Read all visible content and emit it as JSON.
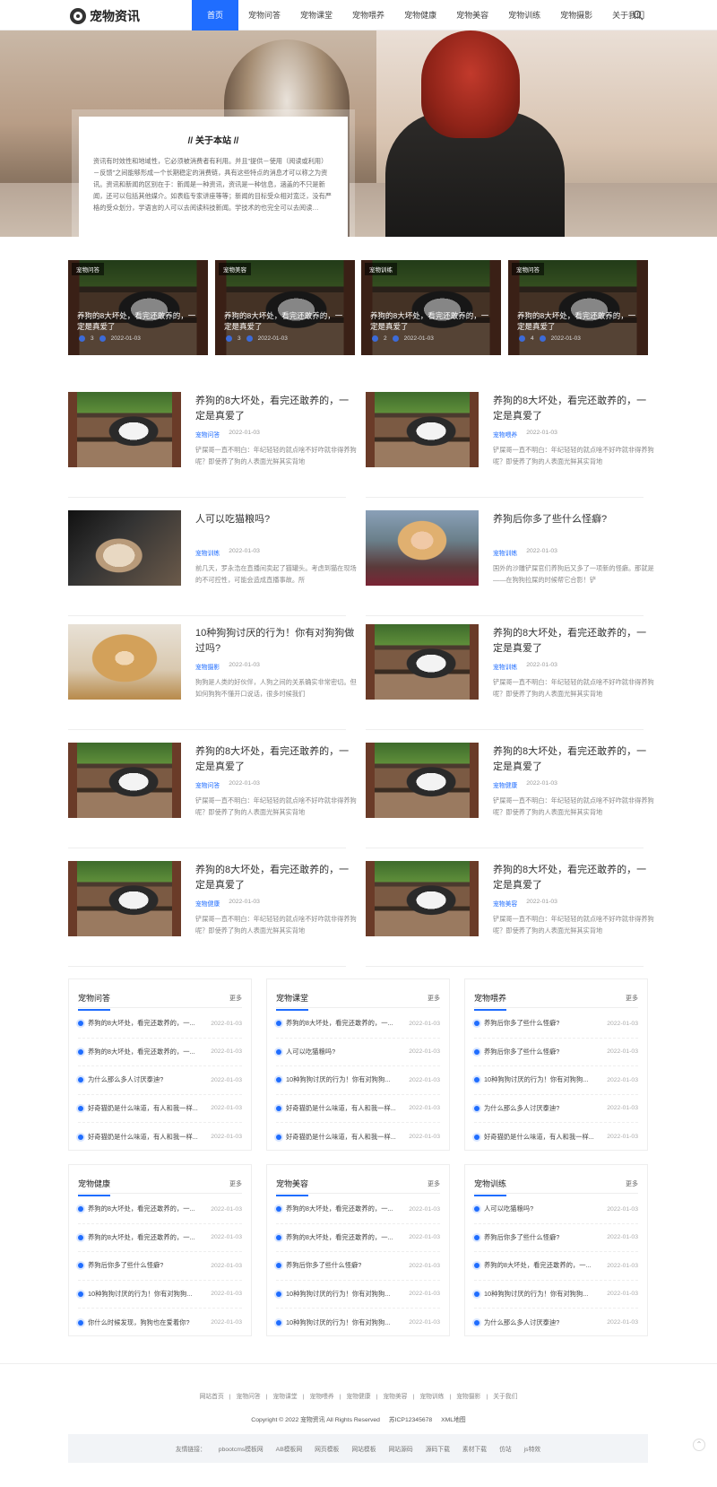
{
  "site": {
    "logo_text": "宠物资讯"
  },
  "nav": {
    "items": [
      "首页",
      "宠物问答",
      "宠物课堂",
      "宠物喂养",
      "宠物健康",
      "宠物美容",
      "宠物训练",
      "宠物摄影",
      "关于我们"
    ],
    "active": 0
  },
  "about": {
    "title": "// 关于本站 //",
    "text": "资讯有时效性和地域性，它必须被消费者有利用。并且\"提供－使用（阅读或利用）－反馈\"之间能够形成一个长期稳定的消费链，具有这些特点的消息才可以称之为资讯。资讯和新闻的区别在于：新闻是一种资讯，资讯是一种信息，涵盖的不只是新闻，还可以包括其他媒介。如表临专家讲座等等；新闻的目标受众相对宽泛，没有严格的受众划分，学语言的人可以去阅读科技新闻。学技术的也完全可以去阅读…"
  },
  "featured": [
    {
      "tag": "宠物问答",
      "title": "养狗的8大坏处，看完还敢养的，一定是真爱了",
      "count": "3",
      "date": "2022-01-03"
    },
    {
      "tag": "宠物美容",
      "title": "养狗的8大坏处，看完还敢养的，一定是真爱了",
      "count": "3",
      "date": "2022-01-03"
    },
    {
      "tag": "宠物训练",
      "title": "养狗的8大坏处，看完还敢养的，一定是真爱了",
      "count": "2",
      "date": "2022-01-03"
    },
    {
      "tag": "宠物问答",
      "title": "养狗的8大坏处，看完还敢养的，一定是真爱了",
      "count": "4",
      "date": "2022-01-03"
    }
  ],
  "posts": [
    {
      "title": "养狗的8大坏处，看完还敢养的，一定是真爱了",
      "cat": "宠物问答",
      "date": "2022-01-03",
      "desc": "铲屎哥一直不明白：年纪轻轻的就点啥不好咋就非得养狗呢？即使养了狗的人表面光鲜其实背地",
      "thumb": "husky"
    },
    {
      "title": "养狗的8大坏处，看完还敢养的，一定是真爱了",
      "cat": "宠物喂养",
      "date": "2022-01-03",
      "desc": "铲屎哥一直不明白：年纪轻轻的就点啥不好咋就非得养狗呢？即使养了狗的人表面光鲜其实背地",
      "thumb": "husky"
    },
    {
      "title": "人可以吃猫粮吗?",
      "cat": "宠物训练",
      "date": "2022-01-03",
      "desc": "前几天，罗永浩在直播间卖起了猫罐头。考虑到猫在现场的不可控性，可能会造成直播事故。所",
      "thumb": "cat"
    },
    {
      "title": "养狗后你多了些什么怪癖?",
      "cat": "宠物训练",
      "date": "2022-01-03",
      "desc": "国外的沙雕铲屎官们养狗后又多了一项新的怪癖。那就是——在狗狗拉屎的时候帮它合影！铲",
      "thumb": "woman"
    },
    {
      "title": "10种狗狗讨厌的行为！你有对狗狗做过吗?",
      "cat": "宠物摄影",
      "date": "2022-01-03",
      "desc": "狗狗是人类的好伙伴，人狗之间的关系确实非常密切。但如何狗狗不懂开口说话，很多时候我们",
      "thumb": "girl-dog"
    },
    {
      "title": "养狗的8大坏处，看完还敢养的，一定是真爱了",
      "cat": "宠物训练",
      "date": "2022-01-03",
      "desc": "铲屎哥一直不明白：年纪轻轻的就点啥不好咋就非得养狗呢？即使养了狗的人表面光鲜其实背地",
      "thumb": "husky"
    },
    {
      "title": "养狗的8大坏处，看完还敢养的，一定是真爱了",
      "cat": "宠物问答",
      "date": "2022-01-03",
      "desc": "铲屎哥一直不明白：年纪轻轻的就点啥不好咋就非得养狗呢？即使养了狗的人表面光鲜其实背地",
      "thumb": "husky"
    },
    {
      "title": "养狗的8大坏处，看完还敢养的，一定是真爱了",
      "cat": "宠物健康",
      "date": "2022-01-03",
      "desc": "铲屎哥一直不明白：年纪轻轻的就点啥不好咋就非得养狗呢？即使养了狗的人表面光鲜其实背地",
      "thumb": "husky"
    },
    {
      "title": "养狗的8大坏处，看完还敢养的，一定是真爱了",
      "cat": "宠物健康",
      "date": "2022-01-03",
      "desc": "铲屎哥一直不明白：年纪轻轻的就点啥不好咋就非得养狗呢？即使养了狗的人表面光鲜其实背地",
      "thumb": "husky"
    },
    {
      "title": "养狗的8大坏处，看完还敢养的，一定是真爱了",
      "cat": "宠物美容",
      "date": "2022-01-03",
      "desc": "铲屎哥一直不明白：年纪轻轻的就点啥不好咋就非得养狗呢？即使养了狗的人表面光鲜其实背地",
      "thumb": "husky"
    }
  ],
  "boxes": [
    {
      "title": "宠物问答",
      "more": "更多",
      "items": [
        [
          "养狗的8大坏处，看完还敢养的，一...",
          "2022-01-03"
        ],
        [
          "养狗的8大坏处，看完还敢养的，一...",
          "2022-01-03"
        ],
        [
          "为什么那么多人讨厌泰迪?",
          "2022-01-03"
        ],
        [
          "好奇猫奶是什么味道，有人和我一样...",
          "2022-01-03"
        ],
        [
          "好奇猫奶是什么味道，有人和我一样...",
          "2022-01-03"
        ]
      ]
    },
    {
      "title": "宠物课堂",
      "more": "更多",
      "items": [
        [
          "养狗的8大坏处，看完还敢养的，一...",
          "2022-01-03"
        ],
        [
          "人可以吃猫粮吗?",
          "2022-01-03"
        ],
        [
          "10种狗狗讨厌的行为！你有对狗狗...",
          "2022-01-03"
        ],
        [
          "好奇猫奶是什么味道，有人和我一样...",
          "2022-01-03"
        ],
        [
          "好奇猫奶是什么味道，有人和我一样...",
          "2022-01-03"
        ]
      ]
    },
    {
      "title": "宠物喂养",
      "more": "更多",
      "items": [
        [
          "养狗后你多了些什么怪癖?",
          "2022-01-03"
        ],
        [
          "养狗后你多了些什么怪癖?",
          "2022-01-03"
        ],
        [
          "10种狗狗讨厌的行为！你有对狗狗...",
          "2022-01-03"
        ],
        [
          "为什么那么多人讨厌泰迪?",
          "2022-01-03"
        ],
        [
          "好奇猫奶是什么味道，有人和我一样...",
          "2022-01-03"
        ]
      ]
    },
    {
      "title": "宠物健康",
      "more": "更多",
      "items": [
        [
          "养狗的8大坏处，看完还敢养的，一...",
          "2022-01-03"
        ],
        [
          "养狗的8大坏处，看完还敢养的，一...",
          "2022-01-03"
        ],
        [
          "养狗后你多了些什么怪癖?",
          "2022-01-03"
        ],
        [
          "10种狗狗讨厌的行为！你有对狗狗...",
          "2022-01-03"
        ],
        [
          "你什么时候发现，狗狗也在爱着你?",
          "2022-01-03"
        ]
      ]
    },
    {
      "title": "宠物美容",
      "more": "更多",
      "items": [
        [
          "养狗的8大坏处，看完还敢养的，一...",
          "2022-01-03"
        ],
        [
          "养狗的8大坏处，看完还敢养的，一...",
          "2022-01-03"
        ],
        [
          "养狗后你多了些什么怪癖?",
          "2022-01-03"
        ],
        [
          "10种狗狗讨厌的行为！你有对狗狗...",
          "2022-01-03"
        ],
        [
          "10种狗狗讨厌的行为！你有对狗狗...",
          "2022-01-03"
        ]
      ]
    },
    {
      "title": "宠物训练",
      "more": "更多",
      "items": [
        [
          "人可以吃猫粮吗?",
          "2022-01-03"
        ],
        [
          "养狗后你多了些什么怪癖?",
          "2022-01-03"
        ],
        [
          "养狗的8大坏处，看完还敢养的，一...",
          "2022-01-03"
        ],
        [
          "10种狗狗讨厌的行为！你有对狗狗...",
          "2022-01-03"
        ],
        [
          "为什么那么多人讨厌泰迪?",
          "2022-01-03"
        ]
      ]
    }
  ],
  "footer": {
    "links": [
      "网站首页",
      "宠物问答",
      "宠物课堂",
      "宠物喂养",
      "宠物健康",
      "宠物美容",
      "宠物训练",
      "宠物摄影",
      "关于我们"
    ],
    "copyright": "Copyright © 2022 宠物资讯 All Rights Reserved",
    "icp": "苏ICP12345678",
    "sitemap": "XML地图",
    "friends_label": "友情链接：",
    "friends": [
      "pbootcms模板网",
      "AB模板网",
      "网页模板",
      "网站模板",
      "网站源码",
      "源码下载",
      "素材下载",
      "仿站",
      "js特效"
    ]
  },
  "colors": {
    "accent": "#1f6dff"
  }
}
